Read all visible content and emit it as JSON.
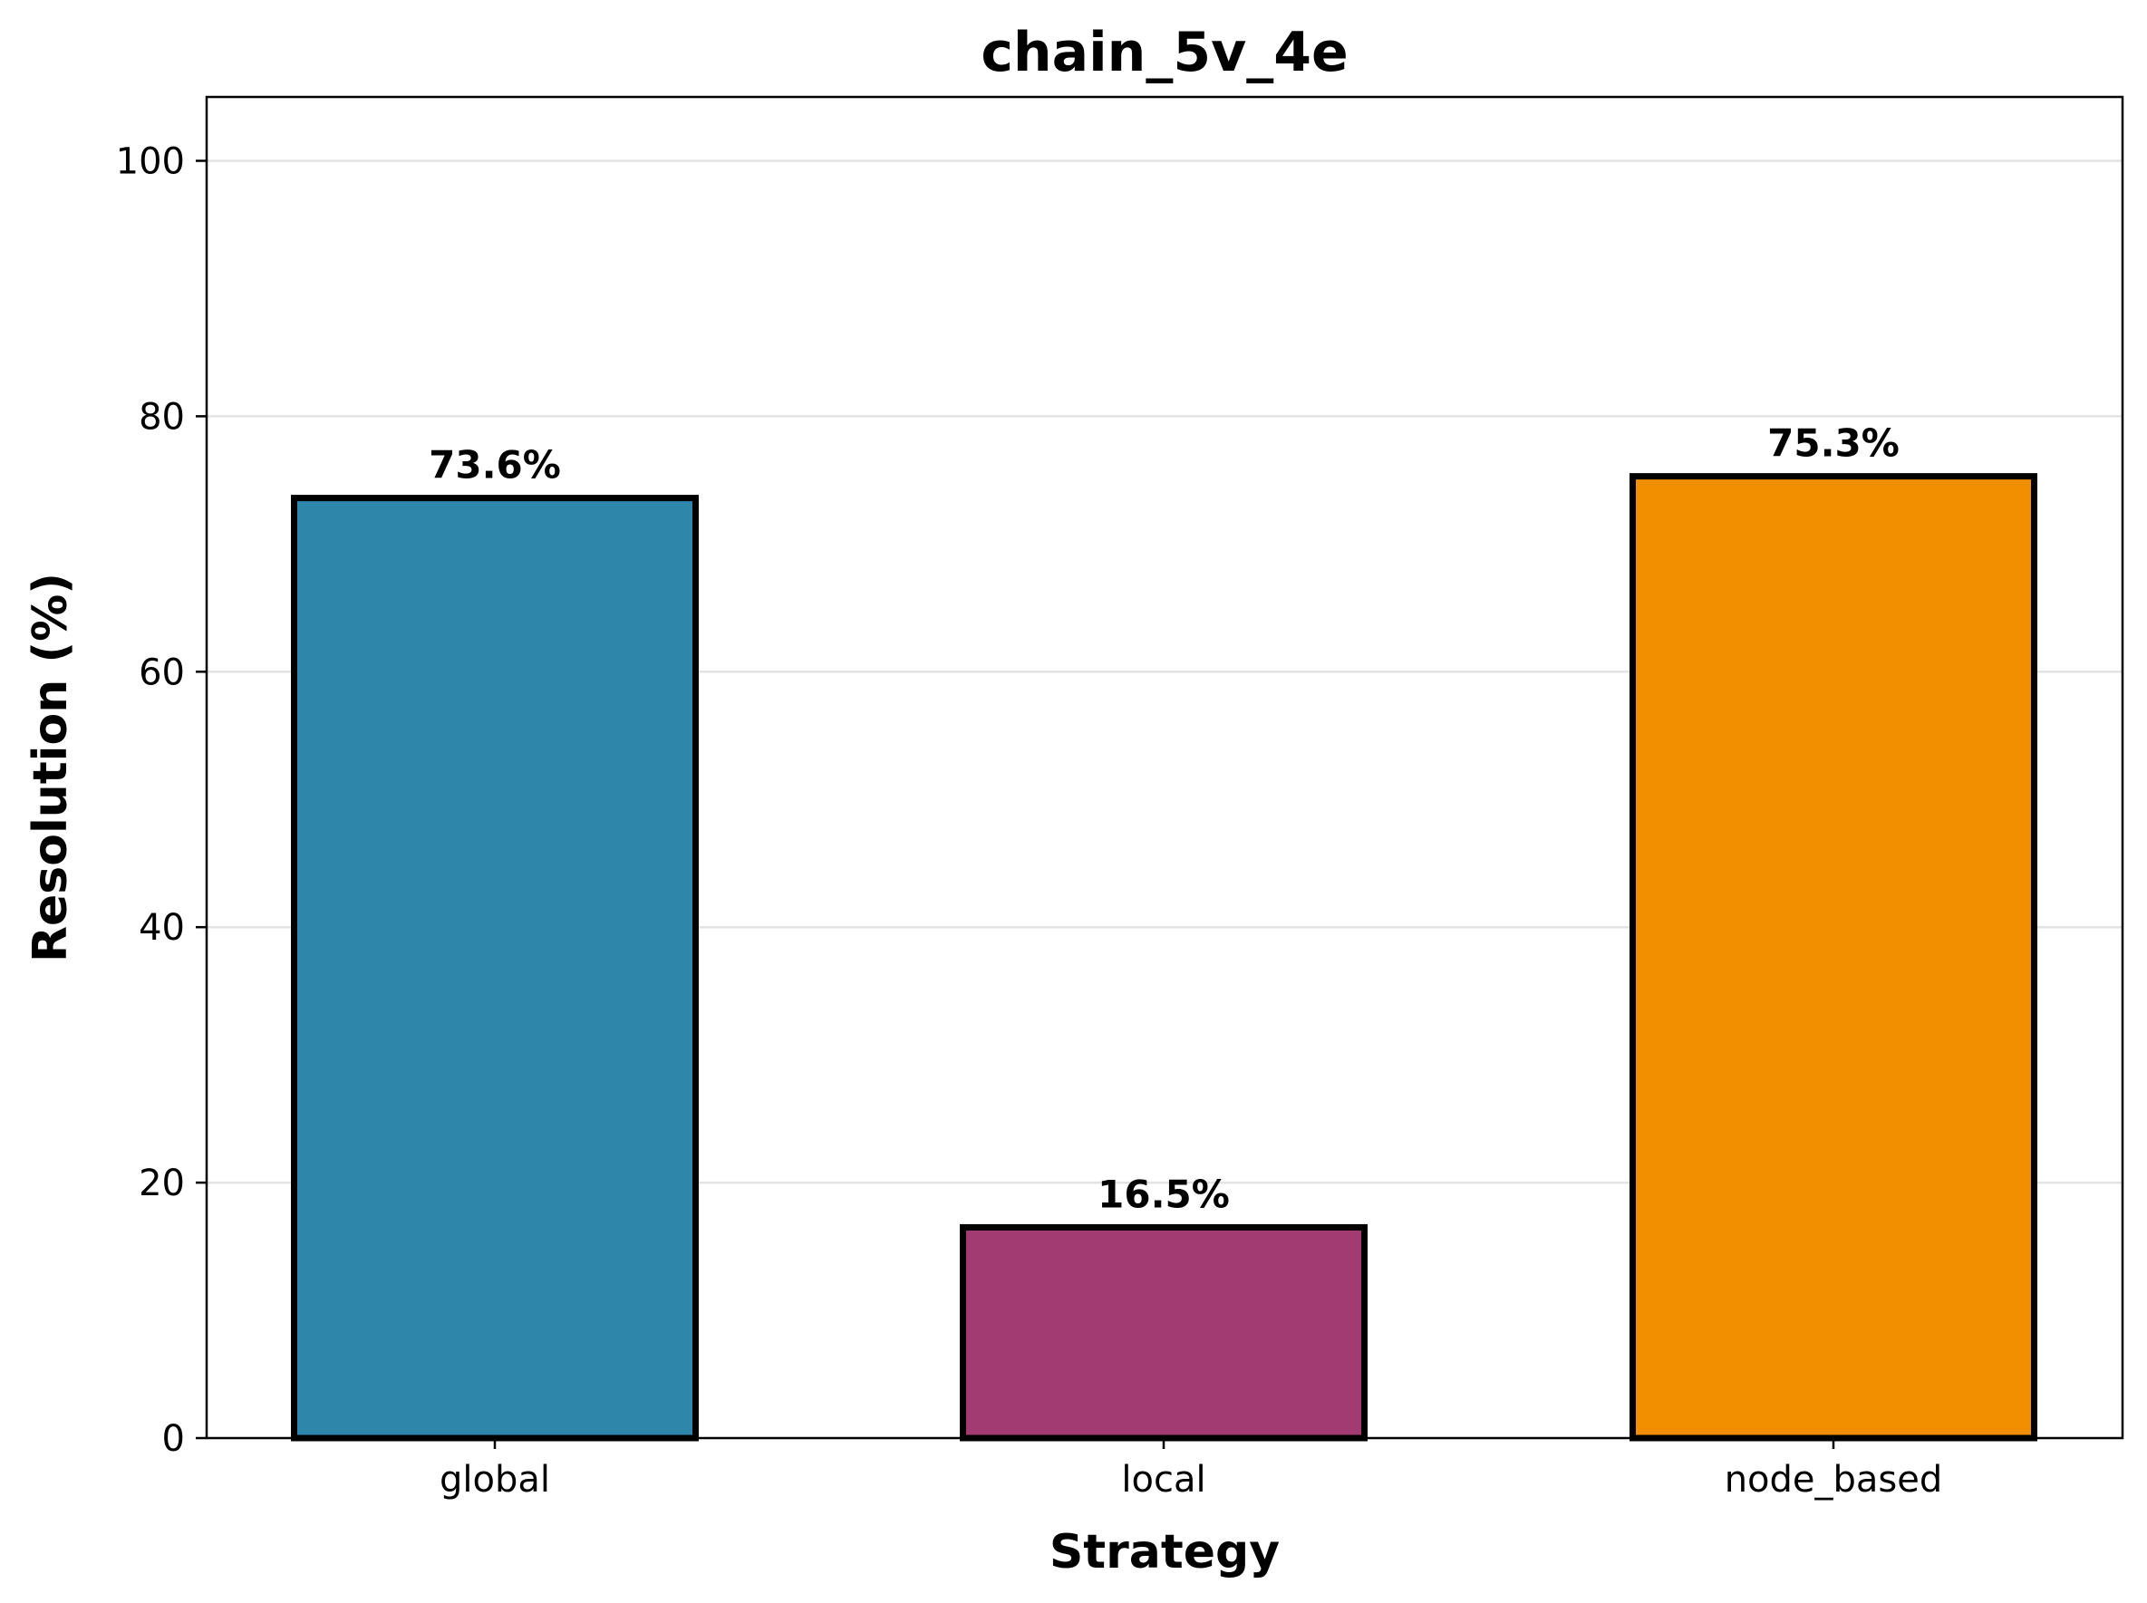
{
  "chart_data": {
    "type": "bar",
    "title": "chain_5v_4e",
    "xlabel": "Strategy",
    "ylabel": "Resolution (%)",
    "categories": [
      "global",
      "local",
      "node_based"
    ],
    "values": [
      73.6,
      16.5,
      75.3
    ],
    "data_labels": [
      "73.6%",
      "16.5%",
      "75.3%"
    ],
    "colors": [
      "#2E86AB",
      "#A23B72",
      "#F18F01"
    ],
    "ylim": [
      0,
      105
    ],
    "yticks": [
      0,
      20,
      40,
      60,
      80,
      100
    ],
    "ytick_labels": [
      "0",
      "20",
      "40",
      "60",
      "80",
      "100"
    ],
    "grid": "y",
    "legend": "none"
  }
}
